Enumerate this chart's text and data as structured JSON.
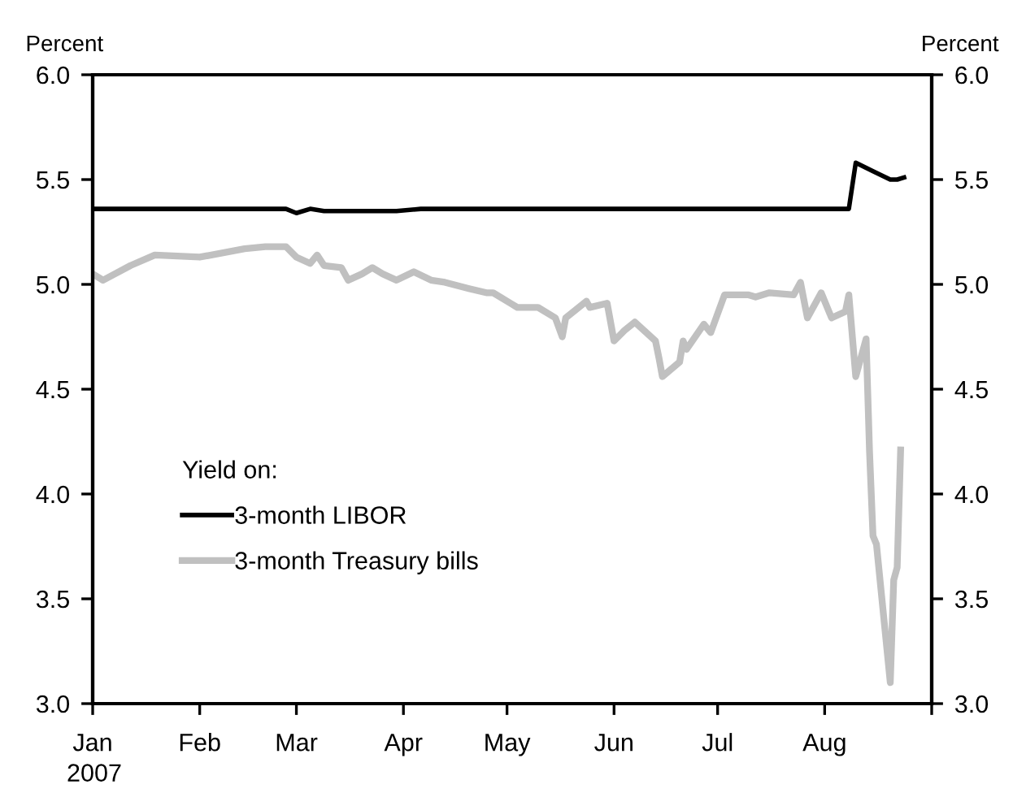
{
  "chart_data": {
    "type": "line",
    "ylabel": "Percent",
    "y2label": "Percent",
    "legend_title": "Yield on:",
    "annotations": [
      "2007"
    ],
    "xlim": [
      "2007-01-01",
      "2007-09-01"
    ],
    "xticks": [
      {
        "value": "2007-01-01",
        "label": "Jan"
      },
      {
        "value": "2007-02-01",
        "label": "Feb"
      },
      {
        "value": "2007-03-01",
        "label": "Mar"
      },
      {
        "value": "2007-04-01",
        "label": "Apr"
      },
      {
        "value": "2007-05-01",
        "label": "May"
      },
      {
        "value": "2007-06-01",
        "label": "Jun"
      },
      {
        "value": "2007-07-01",
        "label": "Jul"
      },
      {
        "value": "2007-08-01",
        "label": "Aug"
      },
      {
        "value": "2007-09-01",
        "label": null
      }
    ],
    "ylim": [
      3.0,
      6.0
    ],
    "yticks": [
      {
        "value": 3.0,
        "label": "3.0"
      },
      {
        "value": 3.5,
        "label": "3.5"
      },
      {
        "value": 4.0,
        "label": "4.0"
      },
      {
        "value": 4.5,
        "label": "4.5"
      },
      {
        "value": 5.0,
        "label": "5.0"
      },
      {
        "value": 5.5,
        "label": "5.5"
      },
      {
        "value": 6.0,
        "label": "6.0"
      }
    ],
    "y2lim": [
      3.0,
      6.0
    ],
    "y2ticks": [
      {
        "value": 3.0,
        "label": "3.0"
      },
      {
        "value": 3.5,
        "label": "3.5"
      },
      {
        "value": 4.0,
        "label": "4.0"
      },
      {
        "value": 4.5,
        "label": "4.5"
      },
      {
        "value": 5.0,
        "label": "5.0"
      },
      {
        "value": 5.5,
        "label": "5.5"
      },
      {
        "value": 6.0,
        "label": "6.0"
      }
    ],
    "grid": false,
    "legend": "bottom left",
    "marker": "none",
    "line_style": "solid",
    "series": [
      {
        "name": "3-month LIBOR",
        "color": "#000000",
        "x": [
          "2007-01-01",
          "2007-02-26",
          "2007-03-01",
          "2007-03-05",
          "2007-03-09",
          "2007-03-30",
          "2007-04-06",
          "2007-08-08",
          "2007-08-10",
          "2007-08-15",
          "2007-08-20",
          "2007-08-22",
          "2007-08-24"
        ],
        "values": [
          5.36,
          5.36,
          5.34,
          5.36,
          5.35,
          5.35,
          5.36,
          5.36,
          5.58,
          5.54,
          5.5,
          5.5,
          5.51
        ]
      },
      {
        "name": "3-month Treasury bills",
        "color": "#c0c0c0",
        "x": [
          "2007-01-01",
          "2007-01-04",
          "2007-01-12",
          "2007-01-19",
          "2007-02-01",
          "2007-02-14",
          "2007-02-20",
          "2007-02-26",
          "2007-03-01",
          "2007-03-05",
          "2007-03-07",
          "2007-03-09",
          "2007-03-14",
          "2007-03-16",
          "2007-03-20",
          "2007-03-23",
          "2007-03-26",
          "2007-03-30",
          "2007-04-04",
          "2007-04-09",
          "2007-04-13",
          "2007-04-20",
          "2007-04-25",
          "2007-04-27",
          "2007-05-02",
          "2007-05-04",
          "2007-05-10",
          "2007-05-15",
          "2007-05-17",
          "2007-05-18",
          "2007-05-24",
          "2007-05-25",
          "2007-05-30",
          "2007-06-01",
          "2007-06-04",
          "2007-06-07",
          "2007-06-13",
          "2007-06-14",
          "2007-06-15",
          "2007-06-20",
          "2007-06-21",
          "2007-06-22",
          "2007-06-27",
          "2007-06-29",
          "2007-07-03",
          "2007-07-10",
          "2007-07-12",
          "2007-07-16",
          "2007-07-23",
          "2007-07-25",
          "2007-07-27",
          "2007-07-31",
          "2007-08-03",
          "2007-08-07",
          "2007-08-08",
          "2007-08-10",
          "2007-08-13",
          "2007-08-14",
          "2007-08-15",
          "2007-08-16",
          "2007-08-20",
          "2007-08-21",
          "2007-08-22",
          "2007-08-23"
        ],
        "values": [
          5.05,
          5.02,
          5.09,
          5.14,
          5.13,
          5.17,
          5.18,
          5.18,
          5.13,
          5.1,
          5.14,
          5.09,
          5.08,
          5.02,
          5.05,
          5.08,
          5.05,
          5.02,
          5.06,
          5.02,
          5.01,
          4.98,
          4.96,
          4.96,
          4.91,
          4.89,
          4.89,
          4.84,
          4.75,
          4.84,
          4.92,
          4.89,
          4.91,
          4.73,
          4.78,
          4.82,
          4.73,
          4.65,
          4.56,
          4.63,
          4.73,
          4.69,
          4.81,
          4.77,
          4.95,
          4.95,
          4.94,
          4.96,
          4.95,
          5.01,
          4.84,
          4.96,
          4.84,
          4.87,
          4.95,
          4.56,
          4.74,
          4.2,
          3.8,
          3.76,
          3.1,
          3.59,
          3.65,
          4.21
        ]
      }
    ]
  }
}
